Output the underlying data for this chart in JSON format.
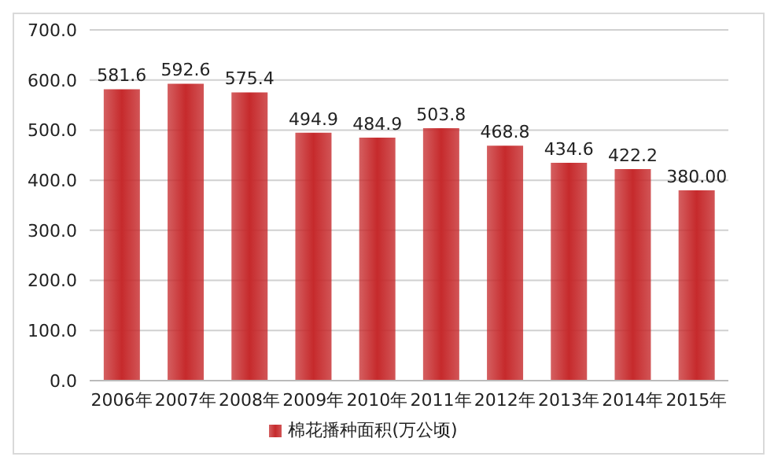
{
  "chart_data": {
    "type": "bar",
    "categories": [
      "2006年",
      "2007年",
      "2008年",
      "2009年",
      "2010年",
      "2011年",
      "2012年",
      "2013年",
      "2014年",
      "2015年"
    ],
    "series": [
      {
        "name": "棉花播种面积(万公顷)",
        "color": "#c62a2c",
        "values": [
          581.6,
          592.6,
          575.4,
          494.9,
          484.9,
          503.8,
          468.8,
          434.6,
          422.2,
          380.0
        ],
        "value_labels": [
          "581.6",
          "592.6",
          "575.4",
          "494.9",
          "484.9",
          "503.8",
          "468.8",
          "434.6",
          "422.2",
          "380.00"
        ]
      }
    ],
    "ylim": [
      0,
      700
    ],
    "yticks": [
      {
        "value": 0,
        "label": "0.0"
      },
      {
        "value": 100,
        "label": "100.0"
      },
      {
        "value": 200,
        "label": "200.0"
      },
      {
        "value": 300,
        "label": "300.0"
      },
      {
        "value": 400,
        "label": "400.0"
      },
      {
        "value": 500,
        "label": "500.0"
      },
      {
        "value": 600,
        "label": "600.0"
      },
      {
        "value": 700,
        "label": "700.0"
      }
    ],
    "grid": "y",
    "legend": "bottom"
  }
}
